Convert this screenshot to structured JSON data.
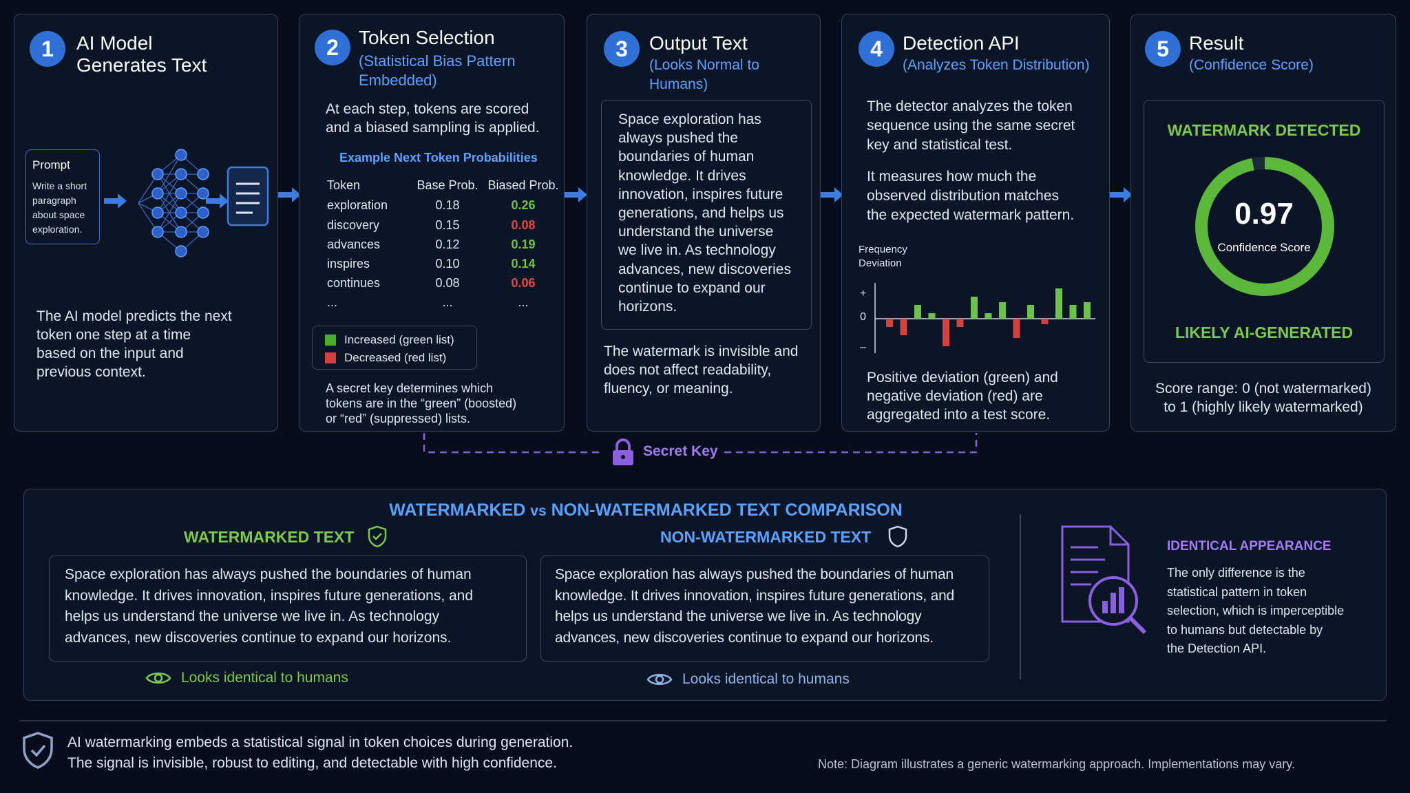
{
  "steps": [
    {
      "num": "1",
      "title_l1": "AI Model",
      "title_l2": "Generates Text",
      "prompt_label": "Prompt",
      "prompt_lines": [
        "Write a short",
        "paragraph",
        "about space",
        "exploration."
      ],
      "desc_lines": [
        "The AI model predicts the next",
        "token one step at a time",
        "based on the input and",
        "previous context."
      ]
    },
    {
      "num": "2",
      "title": "Token Selection",
      "sub_l1": "(Statistical Bias Pattern",
      "sub_l2": "Embedded)",
      "desc_lines": [
        "At each step, tokens are scored",
        "and a biased sampling is applied."
      ],
      "table_title": "Example Next Token Probabilities",
      "headers": [
        "Token",
        "Base Prob.",
        "Biased Prob."
      ],
      "rows": [
        {
          "token": "exploration",
          "base": "0.18",
          "biased": "0.26",
          "dir": "up"
        },
        {
          "token": "discovery",
          "base": "0.15",
          "biased": "0.08",
          "dir": "down"
        },
        {
          "token": "advances",
          "base": "0.12",
          "biased": "0.19",
          "dir": "up"
        },
        {
          "token": "inspires",
          "base": "0.10",
          "biased": "0.14",
          "dir": "up"
        },
        {
          "token": "continues",
          "base": "0.08",
          "biased": "0.06",
          "dir": "down"
        },
        {
          "token": "...",
          "base": "...",
          "biased": "...",
          "dir": "none"
        }
      ],
      "legend_green": "Increased (green list)",
      "legend_red": "Decreased (red list)",
      "note_lines": [
        "A secret key determines which",
        "tokens are in the “green” (boosted)",
        "or “red” (suppressed) lists."
      ]
    },
    {
      "num": "3",
      "title": "Output Text",
      "sub": "(Looks Normal to Humans)",
      "box_lines": [
        "Space exploration has",
        "always pushed the",
        "boundaries of human",
        "knowledge. It drives",
        "innovation, inspires future",
        "generations, and helps us",
        "understand the universe",
        "we live in. As technology",
        "advances, new discoveries",
        "continue to expand our",
        "horizons."
      ],
      "desc_lines": [
        "The watermark is invisible and",
        "does not affect readability,",
        "fluency, or meaning."
      ]
    },
    {
      "num": "4",
      "title": "Detection API",
      "sub": "(Analyzes Token Distribution)",
      "desc1_lines": [
        "The detector analyzes the token",
        "sequence using the same secret",
        "key and statistical test."
      ],
      "desc2_lines": [
        "It measures how much the",
        "observed distribution matches",
        "the expected watermark pattern."
      ],
      "chart_label_l1": "Frequency",
      "chart_label_l2": "Deviation",
      "axis_plus": "+",
      "axis_zero": "0",
      "axis_minus": "–",
      "desc3_lines": [
        "Positive deviation (green) and",
        "negative deviation (red) are",
        "aggregated into a test score."
      ]
    },
    {
      "num": "5",
      "title": "Result",
      "sub": "(Confidence Score)",
      "detected": "WATERMARK DETECTED",
      "score": "0.97",
      "score_label": "Confidence Score",
      "verdict": "LIKELY AI-GENERATED",
      "range_lines": [
        "Score range: 0 (not watermarked)",
        "to 1 (highly likely watermarked)"
      ]
    }
  ],
  "secret_key": "Secret Key",
  "comparison": {
    "title_a": "WATERMARKED",
    "title_vs": "vs",
    "title_b": "NON-WATERMARKED TEXT COMPARISON",
    "wm_label": "WATERMARKED TEXT",
    "nwm_label": "NON-WATERMARKED TEXT",
    "text_lines": [
      "Space exploration has always pushed the boundaries of human",
      "knowledge. It drives innovation, inspires future generations, and",
      "helps us understand the universe we live in. As technology",
      "advances, new discoveries continue to expand our horizons."
    ],
    "looks": "Looks identical to humans",
    "identical_title": "IDENTICAL APPEARANCE",
    "identical_lines": [
      "The only difference is the",
      "statistical pattern in token",
      "selection, which is imperceptible",
      "to humans but detectable by",
      "the Detection API."
    ]
  },
  "footer": {
    "line1": "AI watermarking embeds a statistical signal in token choices during generation.",
    "line2": "The signal is invisible, robust to editing, and detectable with high confidence.",
    "note": "Note: Diagram illustrates a generic watermarking approach. Implementations may vary."
  },
  "chart_data": {
    "type": "bar",
    "ylabel": "Frequency Deviation",
    "values": [
      -0.3,
      -0.6,
      0.5,
      0.2,
      -1.0,
      -0.3,
      0.8,
      0.2,
      0.6,
      -0.7,
      0.5,
      -0.2,
      1.1,
      0.5,
      0.6
    ],
    "colors": {
      "positive": "#6cc24a",
      "negative": "#d64040"
    }
  },
  "result_score_fraction": 0.97,
  "colors": {
    "accent_blue": "#5aa2ff",
    "green": "#7bc94f",
    "purple": "#a37cf5",
    "red": "#e04848",
    "panel_border": "#354156"
  },
  "icons": [
    "neural-network-icon",
    "document-icon",
    "arrow-right-icon",
    "lock-icon",
    "shield-check-icon",
    "shield-icon",
    "eye-icon",
    "document-chart-icon"
  ]
}
